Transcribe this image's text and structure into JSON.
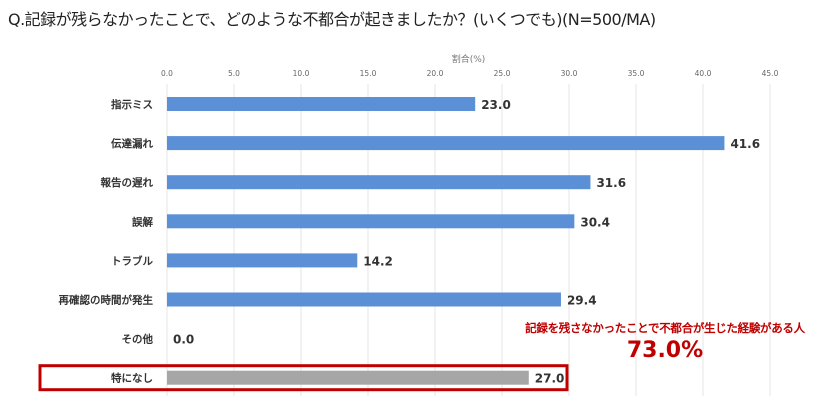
{
  "title": "Q.記録が残らなかったことで、どのような不都合が起きましたか？(いくつでも)(N=500/MA)",
  "chart_data": {
    "type": "bar",
    "orientation": "horizontal",
    "xlabel": "割合(%)",
    "xlim": [
      0,
      45
    ],
    "ticks": [
      "0.0",
      "5.0",
      "10.0",
      "15.0",
      "20.0",
      "25.0",
      "30.0",
      "35.0",
      "40.0",
      "45.0"
    ],
    "categories": [
      "指示ミス",
      "伝達漏れ",
      "報告の遅れ",
      "誤解",
      "トラブル",
      "再確認の時間が発生",
      "その他",
      "特になし"
    ],
    "values": [
      23.0,
      41.6,
      31.6,
      30.4,
      14.2,
      29.4,
      0.0,
      27.0
    ],
    "value_labels": [
      "23.0",
      "41.6",
      "31.6",
      "30.4",
      "14.2",
      "29.4",
      "0.0",
      "27.0"
    ],
    "grid": true,
    "colors": {
      "bar": "#5b8fd6",
      "highlight_bar": "#a6a6a6",
      "highlight_box": "#c00000"
    },
    "highlighted_category": "特になし"
  },
  "annotation": {
    "text": "記録を残さなかったことで不都合が生じた経験がある人",
    "value": "73.0%"
  }
}
